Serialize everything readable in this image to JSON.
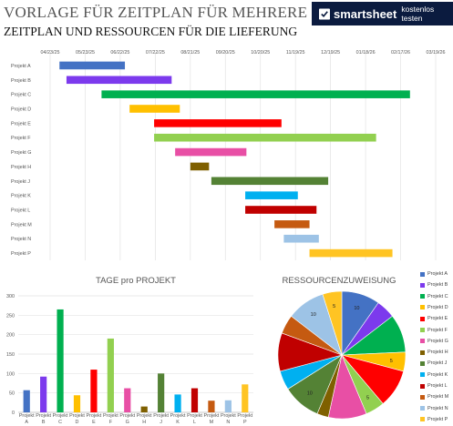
{
  "header": {
    "title": "VORLAGE FÜR ZEITPLAN FÜR MEHRERE PROJEKTE",
    "subtitle": "ZEITPLAN UND RESSOURCEN FÜR DIE LIEFERUNG",
    "brand": "smartsheet",
    "cta": "kostenlos testen"
  },
  "chart_data": [
    {
      "type": "bar",
      "orientation": "horizontal",
      "kind": "gantt",
      "x_tick_labels": [
        "04/23/25",
        "05/23/25",
        "06/22/25",
        "07/22/25",
        "08/21/25",
        "09/20/25",
        "10/20/25",
        "11/19/25",
        "12/19/25",
        "01/18/26",
        "02/17/26",
        "03/19/26"
      ],
      "xlim": [
        "04/23/25",
        "03/19/26"
      ],
      "grid": true,
      "categories": [
        "Projekt A",
        "Projekt B",
        "Projekt C",
        "Projekt D",
        "Projekt E",
        "Projekt F",
        "Projekt G",
        "Projekt H",
        "Projekt J",
        "Projekt K",
        "Projekt L",
        "Projekt M",
        "Projekt N",
        "Projekt P"
      ],
      "series": [
        {
          "start": "05/01/25",
          "end": "06/26/25"
        },
        {
          "start": "05/07/25",
          "end": "08/05/25"
        },
        {
          "start": "06/06/25",
          "end": "02/25/26"
        },
        {
          "start": "06/30/25",
          "end": "08/12/25"
        },
        {
          "start": "07/21/25",
          "end": "11/07/25"
        },
        {
          "start": "07/21/25",
          "end": "01/27/26"
        },
        {
          "start": "08/08/25",
          "end": "10/08/25"
        },
        {
          "start": "08/21/25",
          "end": "09/06/25"
        },
        {
          "start": "09/08/25",
          "end": "12/17/25"
        },
        {
          "start": "10/07/25",
          "end": "11/21/25"
        },
        {
          "start": "10/07/25",
          "end": "12/07/25"
        },
        {
          "start": "11/01/25",
          "end": "12/01/25"
        },
        {
          "start": "11/09/25",
          "end": "12/09/25"
        },
        {
          "start": "12/01/25",
          "end": "02/10/26"
        }
      ],
      "colors": [
        "#4472c4",
        "#7c3aed",
        "#00b050",
        "#ffc000",
        "#ff0000",
        "#92d050",
        "#e84fa5",
        "#7f6000",
        "#548235",
        "#00b0f0",
        "#c00000",
        "#c55a11",
        "#9dc3e6",
        "#ffc423"
      ]
    },
    {
      "type": "bar",
      "title": "TAGE pro PROJEKT",
      "categories": [
        "Projekt A",
        "Projekt B",
        "Projekt C",
        "Projekt D",
        "Projekt E",
        "Projekt F",
        "Projekt G",
        "Projekt H",
        "Projekt J",
        "Projekt K",
        "Projekt L",
        "Projekt M",
        "Projekt N",
        "Projekt P"
      ],
      "values": [
        57,
        92,
        265,
        44,
        110,
        190,
        62,
        15,
        100,
        46,
        62,
        30,
        31,
        72
      ],
      "ylim": [
        0,
        300
      ],
      "y_ticks": [
        0,
        50,
        100,
        150,
        200,
        250,
        300
      ],
      "grid": true,
      "colors": [
        "#4472c4",
        "#7c3aed",
        "#00b050",
        "#ffc000",
        "#ff0000",
        "#92d050",
        "#e84fa5",
        "#7f6000",
        "#548235",
        "#00b0f0",
        "#c00000",
        "#c55a11",
        "#9dc3e6",
        "#ffc423"
      ]
    },
    {
      "type": "pie",
      "title": "RESSOURCENZUWEISUNG",
      "labels": [
        "Projekt A",
        "Projekt B",
        "Projekt C",
        "Projekt D",
        "Projekt E",
        "Projekt F",
        "Projekt G",
        "Projekt H",
        "Projekt J",
        "Projekt K",
        "Projekt L",
        "Projekt M",
        "Projekt N",
        "Projekt P"
      ],
      "values": [
        10,
        5,
        10,
        5,
        10,
        5,
        10,
        3,
        10,
        5,
        10,
        5,
        10,
        5
      ],
      "data_labels": [
        "10",
        "",
        "",
        "5",
        "",
        "5",
        "",
        "",
        "10",
        "",
        "",
        "",
        "10",
        "5"
      ],
      "colors": [
        "#4472c4",
        "#7c3aed",
        "#00b050",
        "#ffc000",
        "#ff0000",
        "#92d050",
        "#e84fa5",
        "#7f6000",
        "#548235",
        "#00b0f0",
        "#c00000",
        "#c55a11",
        "#9dc3e6",
        "#ffc423"
      ],
      "legend_position": "right"
    }
  ]
}
